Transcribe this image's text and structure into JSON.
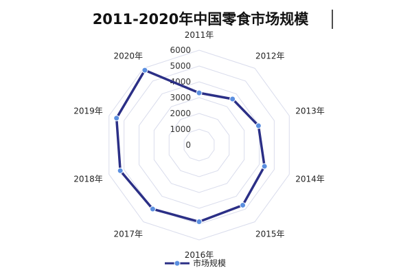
{
  "chart_data": {
    "type": "radar",
    "title": "2011-2020年中国零食市场规模",
    "categories": [
      "2011年",
      "2012年",
      "2013年",
      "2014年",
      "2015年",
      "2016年",
      "2017年",
      "2018年",
      "2019年",
      "2020年"
    ],
    "rlim": [
      0,
      6000
    ],
    "ticks": [
      0,
      1000,
      2000,
      3000,
      4000,
      5000,
      6000
    ],
    "series": [
      {
        "name": "市场规模",
        "values": [
          3300,
          3600,
          3950,
          4350,
          4700,
          4850,
          5000,
          5250,
          5500,
          5850
        ],
        "color": "#2b2f86",
        "marker_color": "#5b8fe0"
      }
    ],
    "grid": true,
    "legend": "bottom-center"
  }
}
